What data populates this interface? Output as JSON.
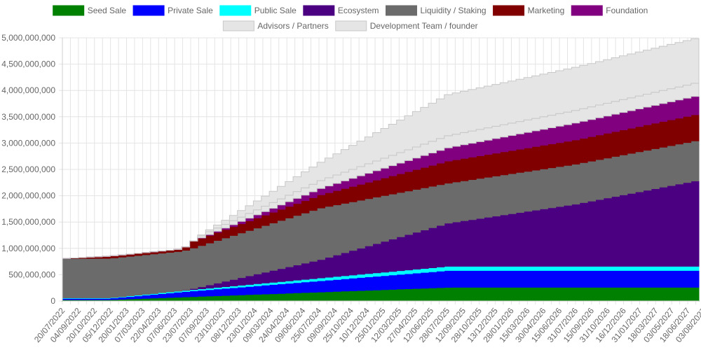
{
  "chart_data": {
    "type": "area",
    "stacked": true,
    "step": true,
    "y_tick_labels": [
      "0",
      "500,000,000",
      "1,000,000,000",
      "1,500,000,000",
      "2,000,000,000",
      "2,500,000,000",
      "3,000,000,000",
      "3,500,000,000",
      "4,000,000,000",
      "4,500,000,000",
      "5,000,000,000"
    ],
    "ylim": [
      0,
      5000000000
    ],
    "x_tick_labels": [
      "20/07/2022",
      "04/09/2022",
      "20/10/2022",
      "05/12/2022",
      "20/01/2023",
      "07/03/2023",
      "22/04/2023",
      "07/06/2023",
      "23/07/2023",
      "07/09/2023",
      "23/10/2023",
      "08/12/2023",
      "23/01/2024",
      "09/03/2024",
      "24/04/2024",
      "09/06/2024",
      "25/07/2024",
      "09/09/2024",
      "25/10/2024",
      "10/12/2024",
      "25/01/2025",
      "12/03/2025",
      "27/04/2025",
      "12/06/2025",
      "28/07/2025",
      "12/09/2025",
      "28/10/2025",
      "13/12/2025",
      "28/01/2026",
      "15/03/2026",
      "30/04/2026",
      "15/06/2026",
      "31/07/2026",
      "15/09/2026",
      "31/10/2026",
      "16/12/2026",
      "31/01/2027",
      "18/03/2027",
      "03/05/2027",
      "18/06/2027",
      "03/08/2027"
    ],
    "x_start": "20/07/2022",
    "x_end": "20/07/2027",
    "grid": true,
    "legend_position": "top",
    "series": [
      {
        "name": "Seed Sale",
        "color": "#008000",
        "border": "#008000",
        "points": [
          [
            "20/07/2022",
            25000000
          ],
          [
            "20/11/2022",
            25000000
          ],
          [
            "20/07/2025",
            260000000
          ],
          [
            "20/07/2027",
            260000000
          ]
        ]
      },
      {
        "name": "Private Sale",
        "color": "#0000ff",
        "border": "#0000ff",
        "points": [
          [
            "20/07/2022",
            25000000
          ],
          [
            "20/11/2022",
            25000000
          ],
          [
            "20/06/2023",
            100000000
          ],
          [
            "20/07/2025",
            320000000
          ],
          [
            "20/07/2027",
            320000000
          ]
        ]
      },
      {
        "name": "Public Sale",
        "color": "#00ffff",
        "border": "#00ffff",
        "points": [
          [
            "20/07/2022",
            10000000
          ],
          [
            "20/11/2022",
            10000000
          ],
          [
            "20/07/2023",
            25000000
          ],
          [
            "20/07/2025",
            80000000
          ],
          [
            "20/07/2027",
            80000000
          ]
        ]
      },
      {
        "name": "Ecosystem",
        "color": "#4b0082",
        "border": "#4b0082",
        "points": [
          [
            "20/07/2022",
            0
          ],
          [
            "20/06/2023",
            0
          ],
          [
            "20/07/2023",
            20000000
          ],
          [
            "20/07/2024",
            350000000
          ],
          [
            "20/07/2025",
            820000000
          ],
          [
            "20/07/2026",
            1180000000
          ],
          [
            "20/07/2027",
            1650000000
          ]
        ]
      },
      {
        "name": "Liquidity / Staking",
        "color": "#6b6b6b",
        "border": "#6b6b6b",
        "points": [
          [
            "20/07/2022",
            750000000
          ],
          [
            "20/06/2023",
            750000000
          ],
          [
            "20/07/2023",
            770000000
          ],
          [
            "20/07/2024",
            980000000
          ],
          [
            "20/07/2025",
            760000000
          ],
          [
            "20/07/2026",
            760000000
          ],
          [
            "20/07/2027",
            760000000
          ]
        ]
      },
      {
        "name": "Marketing",
        "color": "#800000",
        "border": "#800000",
        "points": [
          [
            "20/07/2022",
            0
          ],
          [
            "20/11/2022",
            40000000
          ],
          [
            "20/06/2023",
            40000000
          ],
          [
            "20/07/2023",
            130000000
          ],
          [
            "20/07/2024",
            250000000
          ],
          [
            "20/07/2025",
            420000000
          ],
          [
            "20/07/2026",
            460000000
          ],
          [
            "20/07/2027",
            500000000
          ]
        ]
      },
      {
        "name": "Foundation",
        "color": "#800080",
        "border": "#800080",
        "points": [
          [
            "20/07/2022",
            0
          ],
          [
            "20/07/2023",
            0
          ],
          [
            "20/08/2023",
            10000000
          ],
          [
            "20/07/2024",
            120000000
          ],
          [
            "20/07/2025",
            250000000
          ],
          [
            "20/07/2026",
            320000000
          ],
          [
            "20/07/2027",
            350000000
          ]
        ]
      },
      {
        "name": "Advisors / Partners",
        "color": "#e5e5e5",
        "border": "#c8c8c8",
        "points": [
          [
            "20/07/2022",
            0
          ],
          [
            "20/07/2023",
            0
          ],
          [
            "20/08/2023",
            50000000
          ],
          [
            "20/07/2024",
            150000000
          ],
          [
            "20/07/2025",
            230000000
          ],
          [
            "20/07/2026",
            240000000
          ],
          [
            "20/07/2027",
            250000000
          ]
        ]
      },
      {
        "name": "Development Team / founder",
        "color": "#e5e5e5",
        "border": "#c8c8c8",
        "points": [
          [
            "20/07/2022",
            0
          ],
          [
            "20/07/2023",
            0
          ],
          [
            "20/09/2023",
            50000000
          ],
          [
            "20/07/2024",
            350000000
          ],
          [
            "20/07/2025",
            780000000
          ],
          [
            "20/07/2026",
            820000000
          ],
          [
            "20/07/2027",
            850000000
          ]
        ]
      }
    ]
  }
}
